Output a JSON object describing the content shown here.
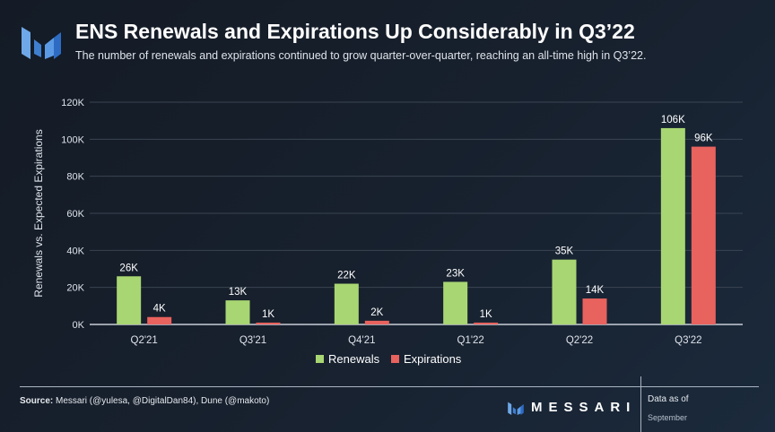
{
  "header": {
    "title": "ENS Renewals and Expirations Up Considerably in Q3’22",
    "subtitle": "The number of renewals and expirations continued to grow quarter-over-quarter, reaching an all-time high in Q3’22."
  },
  "chart_data": {
    "type": "bar",
    "categories": [
      "Q2'21",
      "Q3'21",
      "Q4'21",
      "Q1'22",
      "Q2'22",
      "Q3'22"
    ],
    "series": [
      {
        "name": "Renewals",
        "values": [
          26,
          13,
          22,
          23,
          35,
          106
        ],
        "labels": [
          "26K",
          "13K",
          "22K",
          "23K",
          "35K",
          "106K"
        ],
        "color": "#a8d672"
      },
      {
        "name": "Expirations",
        "values": [
          4,
          1,
          2,
          1,
          14,
          96
        ],
        "labels": [
          "4K",
          "1K",
          "2K",
          "1K",
          "14K",
          "96K"
        ],
        "color": "#e8625e"
      }
    ],
    "ylabel": "Renewals vs. Expected Expirations",
    "ylim": [
      0,
      120
    ],
    "yticks": [
      0,
      20,
      40,
      60,
      80,
      100,
      120
    ],
    "ytick_labels": [
      "0K",
      "20K",
      "40K",
      "60K",
      "80K",
      "100K",
      "120K"
    ],
    "grid": true,
    "legend": "bottom-center"
  },
  "footer": {
    "source_label": "Source:",
    "source_text": " Messari (@yulesa, @DigitalDan84), Dune (@makoto)",
    "brand": "MESSARI",
    "data_as_of": "Data as of",
    "date": "September"
  },
  "colors": {
    "logo": "#4a90d9",
    "axis": "#c8ced8"
  }
}
